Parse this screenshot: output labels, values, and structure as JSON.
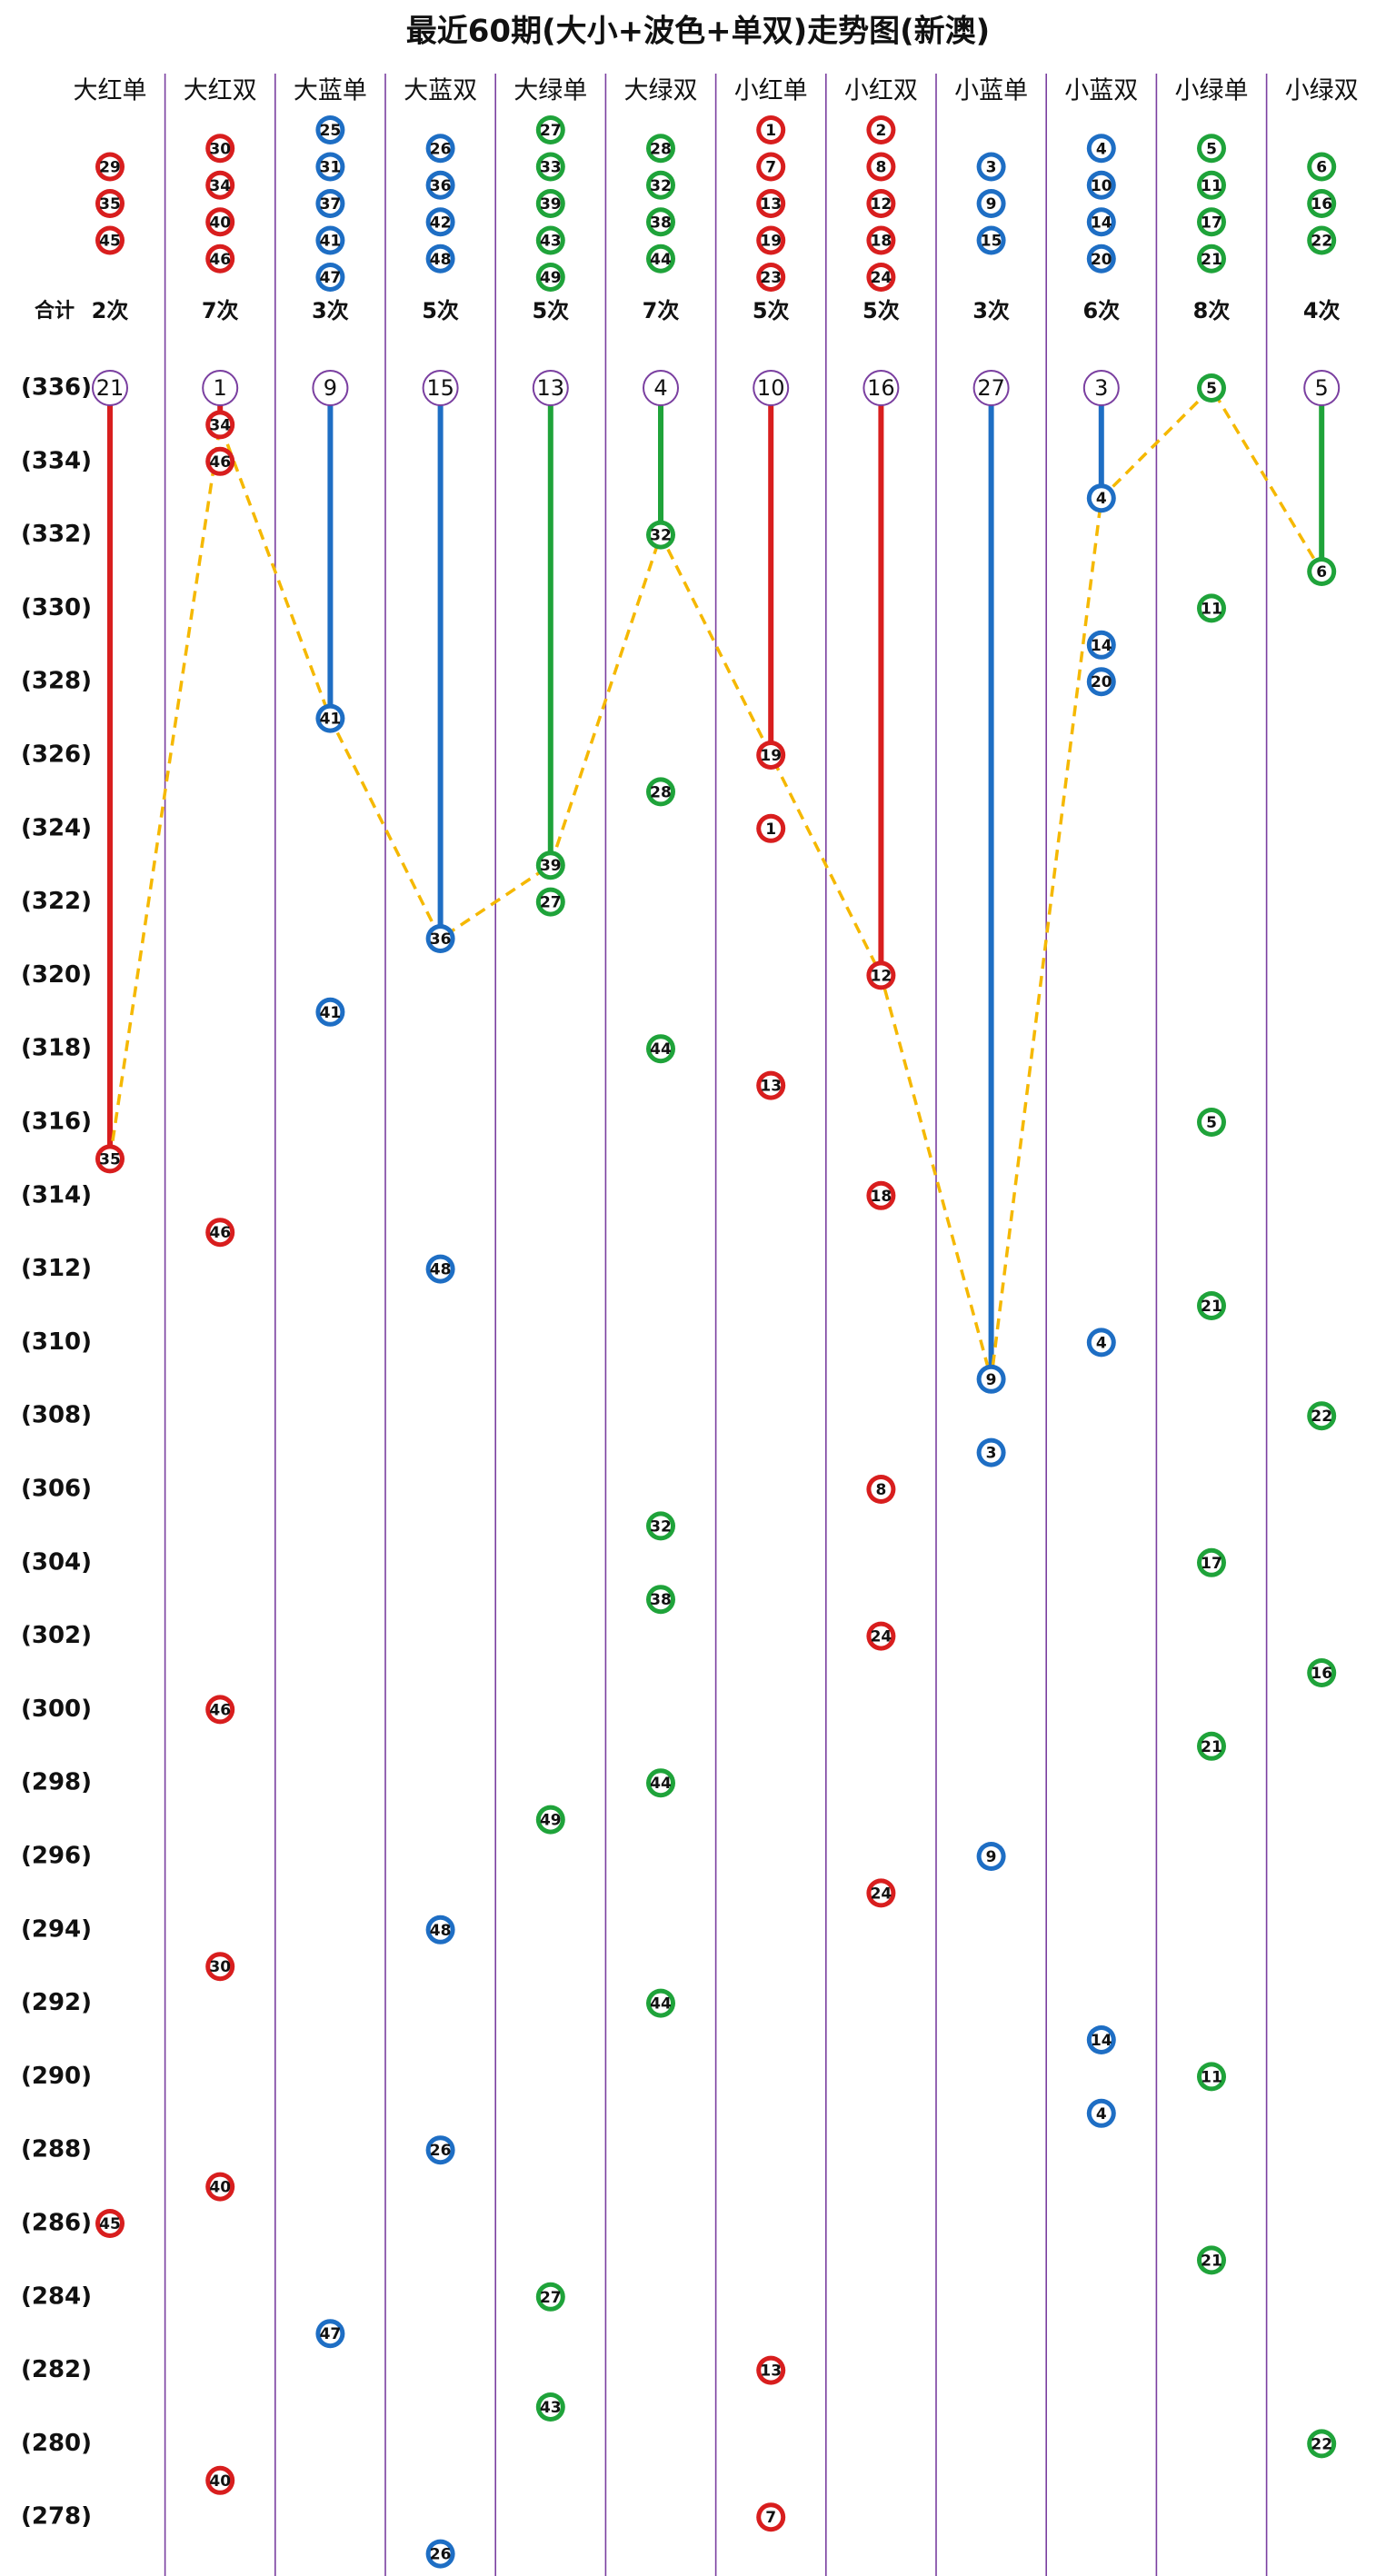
{
  "title": "最近60期(大小+波色+单双)走势图(新澳)",
  "total_label": "合计",
  "periods": [
    {
      "value": 336,
      "label": "(336)"
    },
    {
      "value": 334,
      "label": "(334)"
    },
    {
      "value": 332,
      "label": "(332)"
    },
    {
      "value": 330,
      "label": "(330)"
    },
    {
      "value": 328,
      "label": "(328)"
    },
    {
      "value": 326,
      "label": "(326)"
    },
    {
      "value": 324,
      "label": "(324)"
    },
    {
      "value": 322,
      "label": "(322)"
    },
    {
      "value": 320,
      "label": "(320)"
    },
    {
      "value": 318,
      "label": "(318)"
    },
    {
      "value": 316,
      "label": "(316)"
    },
    {
      "value": 314,
      "label": "(314)"
    },
    {
      "value": 312,
      "label": "(312)"
    },
    {
      "value": 310,
      "label": "(310)"
    },
    {
      "value": 308,
      "label": "(308)"
    },
    {
      "value": 306,
      "label": "(306)"
    },
    {
      "value": 304,
      "label": "(304)"
    },
    {
      "value": 302,
      "label": "(302)"
    },
    {
      "value": 300,
      "label": "(300)"
    },
    {
      "value": 298,
      "label": "(298)"
    },
    {
      "value": 296,
      "label": "(296)"
    },
    {
      "value": 294,
      "label": "(294)"
    },
    {
      "value": 292,
      "label": "(292)"
    },
    {
      "value": 290,
      "label": "(290)"
    },
    {
      "value": 288,
      "label": "(288)"
    },
    {
      "value": 286,
      "label": "(286)"
    },
    {
      "value": 284,
      "label": "(284)"
    },
    {
      "value": 282,
      "label": "(282)"
    },
    {
      "value": 280,
      "label": "(280)"
    },
    {
      "value": 278,
      "label": "(278)"
    }
  ],
  "columns": [
    {
      "name": "大红单",
      "color": "#d81e1e",
      "numbers": [
        29,
        35,
        45
      ],
      "count": "2次",
      "omission": 21,
      "hits": [
        {
          "period": 315,
          "number": 35
        },
        {
          "period": 286,
          "number": 45
        }
      ]
    },
    {
      "name": "大红双",
      "color": "#d81e1e",
      "numbers": [
        30,
        34,
        40,
        46
      ],
      "count": "7次",
      "omission": 1,
      "hits": [
        {
          "period": 335,
          "number": 34
        },
        {
          "period": 334,
          "number": 46
        },
        {
          "period": 313,
          "number": 46
        },
        {
          "period": 300,
          "number": 46
        },
        {
          "period": 293,
          "number": 30
        },
        {
          "period": 287,
          "number": 40
        },
        {
          "period": 279,
          "number": 40
        }
      ]
    },
    {
      "name": "大蓝单",
      "color": "#1e6ec4",
      "numbers": [
        25,
        31,
        37,
        41,
        47
      ],
      "count": "3次",
      "omission": 9,
      "hits": [
        {
          "period": 327,
          "number": 41
        },
        {
          "period": 319,
          "number": 41
        },
        {
          "period": 283,
          "number": 47
        }
      ]
    },
    {
      "name": "大蓝双",
      "color": "#1e6ec4",
      "numbers": [
        26,
        36,
        42,
        48
      ],
      "count": "5次",
      "omission": 15,
      "hits": [
        {
          "period": 321,
          "number": 36
        },
        {
          "period": 312,
          "number": 48
        },
        {
          "period": 294,
          "number": 48
        },
        {
          "period": 288,
          "number": 26
        },
        {
          "period": 277,
          "number": 26
        }
      ]
    },
    {
      "name": "大绿单",
      "color": "#1fa33a",
      "numbers": [
        27,
        33,
        39,
        43,
        49
      ],
      "count": "5次",
      "omission": 13,
      "hits": [
        {
          "period": 323,
          "number": 39
        },
        {
          "period": 322,
          "number": 27
        },
        {
          "period": 297,
          "number": 49
        },
        {
          "period": 284,
          "number": 27
        },
        {
          "period": 281,
          "number": 43
        }
      ]
    },
    {
      "name": "大绿双",
      "color": "#1fa33a",
      "numbers": [
        28,
        32,
        38,
        44
      ],
      "count": "7次",
      "omission": 4,
      "hits": [
        {
          "period": 332,
          "number": 32
        },
        {
          "period": 325,
          "number": 28
        },
        {
          "period": 318,
          "number": 44
        },
        {
          "period": 305,
          "number": 32
        },
        {
          "period": 303,
          "number": 38
        },
        {
          "period": 298,
          "number": 44
        },
        {
          "period": 292,
          "number": 44
        }
      ]
    },
    {
      "name": "小红单",
      "color": "#d81e1e",
      "numbers": [
        1,
        7,
        13,
        19,
        23
      ],
      "count": "5次",
      "omission": 10,
      "hits": [
        {
          "period": 326,
          "number": 19
        },
        {
          "period": 324,
          "number": 1
        },
        {
          "period": 317,
          "number": 13
        },
        {
          "period": 282,
          "number": 13
        },
        {
          "period": 278,
          "number": 7
        }
      ]
    },
    {
      "name": "小红双",
      "color": "#d81e1e",
      "numbers": [
        2,
        8,
        12,
        18,
        24
      ],
      "count": "5次",
      "omission": 16,
      "hits": [
        {
          "period": 320,
          "number": 12
        },
        {
          "period": 314,
          "number": 18
        },
        {
          "period": 306,
          "number": 8
        },
        {
          "period": 302,
          "number": 24
        },
        {
          "period": 295,
          "number": 24
        }
      ]
    },
    {
      "name": "小蓝单",
      "color": "#1e6ec4",
      "numbers": [
        3,
        9,
        15
      ],
      "count": "3次",
      "omission": 27,
      "hits": [
        {
          "period": 309,
          "number": 9
        },
        {
          "period": 307,
          "number": 3
        },
        {
          "period": 296,
          "number": 9
        }
      ]
    },
    {
      "name": "小蓝双",
      "color": "#1e6ec4",
      "numbers": [
        4,
        10,
        14,
        20
      ],
      "count": "6次",
      "omission": 3,
      "hits": [
        {
          "period": 333,
          "number": 4
        },
        {
          "period": 329,
          "number": 14
        },
        {
          "period": 328,
          "number": 20
        },
        {
          "period": 310,
          "number": 4
        },
        {
          "period": 291,
          "number": 14
        },
        {
          "period": 289,
          "number": 4
        }
      ]
    },
    {
      "name": "小绿单",
      "color": "#1fa33a",
      "numbers": [
        5,
        11,
        17,
        21
      ],
      "count": "8次",
      "hits": [
        {
          "period": 336,
          "number": 5
        },
        {
          "period": 330,
          "number": 11
        },
        {
          "period": 316,
          "number": 5
        },
        {
          "period": 311,
          "number": 21
        },
        {
          "period": 304,
          "number": 17
        },
        {
          "period": 299,
          "number": 21
        },
        {
          "period": 290,
          "number": 11
        },
        {
          "period": 285,
          "number": 21
        }
      ]
    },
    {
      "name": "小绿双",
      "color": "#1fa33a",
      "numbers": [
        6,
        16,
        22
      ],
      "count": "4次",
      "omission": 5,
      "hits": [
        {
          "period": 331,
          "number": 6
        },
        {
          "period": 308,
          "number": 22
        },
        {
          "period": 301,
          "number": 16
        },
        {
          "period": 280,
          "number": 22
        }
      ]
    }
  ]
}
